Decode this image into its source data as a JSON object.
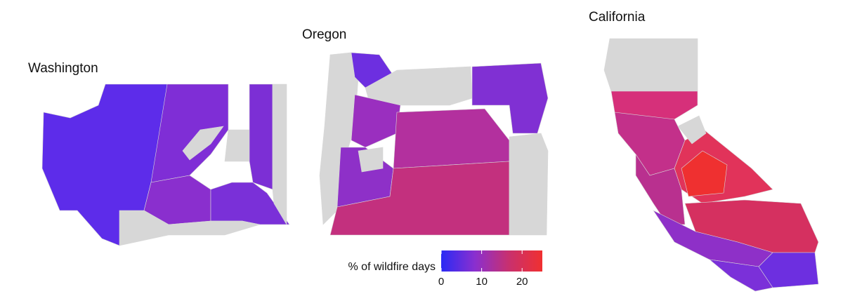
{
  "maps": [
    {
      "title": "Washington"
    },
    {
      "title": "Oregon"
    },
    {
      "title": "California"
    }
  ],
  "legend": {
    "title": "% of wildfire days",
    "lim": [
      0,
      25
    ],
    "ticks": [
      0,
      10,
      20
    ],
    "colors": [
      "#2a2af5",
      "#8a2fcf",
      "#c8306f",
      "#f03030"
    ]
  }
}
